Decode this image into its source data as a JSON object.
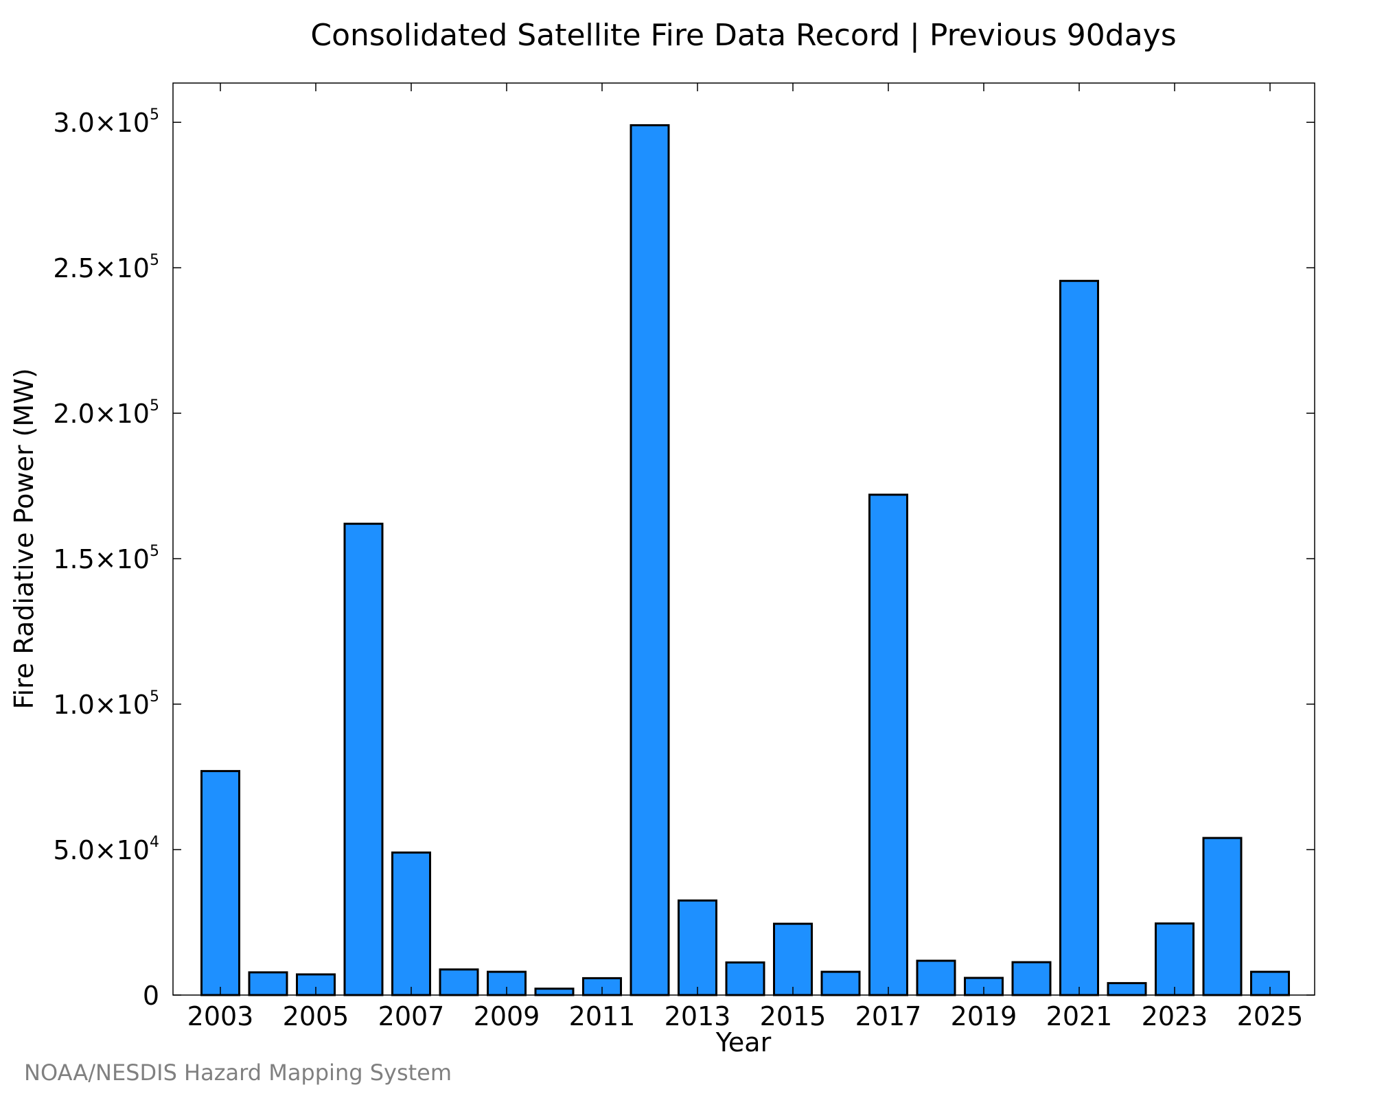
{
  "chart_data": {
    "type": "bar",
    "title": "Consolidated Satellite Fire Data Record | Previous 90days",
    "xlabel": "Year",
    "ylabel": "Fire Radiative Power (MW)",
    "categories": [
      "2003",
      "2004",
      "2005",
      "2006",
      "2007",
      "2008",
      "2009",
      "2010",
      "2011",
      "2012",
      "2013",
      "2014",
      "2015",
      "2016",
      "2017",
      "2018",
      "2019",
      "2020",
      "2021",
      "2022",
      "2023",
      "2024",
      "2025"
    ],
    "values": [
      77000,
      7800,
      7100,
      162000,
      49000,
      8800,
      8000,
      2200,
      5800,
      299000,
      32500,
      11200,
      24500,
      8000,
      172000,
      11800,
      5900,
      11300,
      245500,
      4100,
      24600,
      54000,
      8000
    ],
    "x_tick_labels": [
      "2003",
      "2005",
      "2007",
      "2009",
      "2011",
      "2013",
      "2015",
      "2017",
      "2019",
      "2021",
      "2023",
      "2025"
    ],
    "ylim": [
      0,
      313500
    ],
    "y_ticks": [
      {
        "value": 0,
        "mantissa": "0",
        "exponent": ""
      },
      {
        "value": 50000,
        "mantissa": "5.0×10",
        "exponent": "4"
      },
      {
        "value": 100000,
        "mantissa": "1.0×10",
        "exponent": "5"
      },
      {
        "value": 150000,
        "mantissa": "1.5×10",
        "exponent": "5"
      },
      {
        "value": 200000,
        "mantissa": "2.0×10",
        "exponent": "5"
      },
      {
        "value": 250000,
        "mantissa": "2.5×10",
        "exponent": "5"
      },
      {
        "value": 300000,
        "mantissa": "3.0×10",
        "exponent": "5"
      }
    ],
    "grid": false,
    "bar_color": "#1e90ff",
    "credit": "NOAA/NESDIS Hazard Mapping System"
  }
}
